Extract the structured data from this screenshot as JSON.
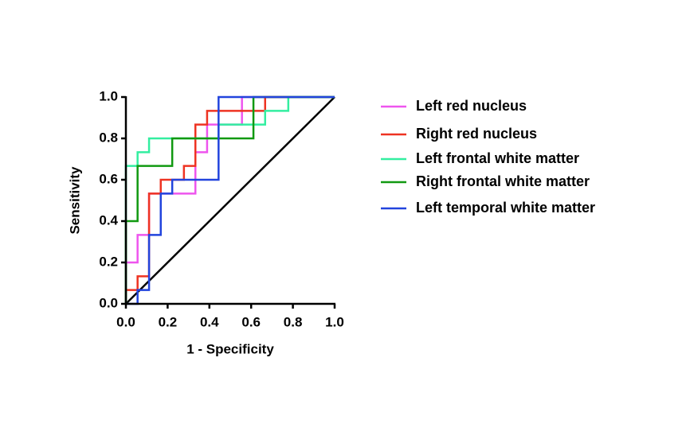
{
  "chart_data": {
    "type": "line",
    "xlabel": "1 - Specificity",
    "ylabel": "Sensitivity",
    "xlim": [
      0,
      1
    ],
    "ylim": [
      0,
      1
    ],
    "xticks": [
      {
        "value": 0,
        "label": "0.0"
      },
      {
        "value": 0.2,
        "label": "0.2"
      },
      {
        "value": 0.4,
        "label": "0.4"
      },
      {
        "value": 0.6,
        "label": "0.6"
      },
      {
        "value": 0.8,
        "label": "0.8"
      },
      {
        "value": 1,
        "label": "1.0"
      }
    ],
    "yticks": [
      {
        "value": 0,
        "label": "0.0"
      },
      {
        "value": 0.2,
        "label": "0.2"
      },
      {
        "value": 0.4,
        "label": "0.4"
      },
      {
        "value": 0.6,
        "label": "0.6"
      },
      {
        "value": 0.8,
        "label": "0.8"
      },
      {
        "value": 1,
        "label": "1.0"
      }
    ],
    "series": [
      {
        "name": "Left red nucleus",
        "color": "#ee55ee",
        "x": [
          0,
          0,
          0.056,
          0.056,
          0.111,
          0.111,
          0.333,
          0.333,
          0.389,
          0.389,
          0.556,
          0.556,
          1
        ],
        "values": [
          0,
          0.2,
          0.2,
          0.333,
          0.333,
          0.533,
          0.533,
          0.733,
          0.733,
          0.867,
          0.867,
          1,
          1
        ]
      },
      {
        "name": "Right red nucleus",
        "color": "#ee3322",
        "x": [
          0,
          0,
          0.056,
          0.056,
          0.111,
          0.111,
          0.167,
          0.167,
          0.278,
          0.278,
          0.333,
          0.333,
          0.389,
          0.389,
          0.667,
          0.667,
          1
        ],
        "values": [
          0,
          0.067,
          0.067,
          0.133,
          0.133,
          0.533,
          0.533,
          0.6,
          0.6,
          0.667,
          0.667,
          0.867,
          0.867,
          0.933,
          0.933,
          1,
          1
        ]
      },
      {
        "name": "Left frontal white matter",
        "color": "#33eea0",
        "x": [
          0,
          0,
          0.056,
          0.056,
          0.111,
          0.111,
          0.444,
          0.444,
          0.667,
          0.667,
          0.778,
          0.778,
          1
        ],
        "values": [
          0,
          0.667,
          0.667,
          0.733,
          0.733,
          0.8,
          0.8,
          0.867,
          0.867,
          0.933,
          0.933,
          1,
          1
        ]
      },
      {
        "name": "Right frontal white matter",
        "color": "#119911",
        "x": [
          0,
          0,
          0.056,
          0.056,
          0.222,
          0.222,
          0.611,
          0.611,
          1
        ],
        "values": [
          0,
          0.4,
          0.4,
          0.667,
          0.667,
          0.8,
          0.8,
          1,
          1
        ]
      },
      {
        "name": "Left temporal white matter",
        "color": "#2244dd",
        "x": [
          0,
          0.056,
          0.056,
          0.111,
          0.111,
          0.167,
          0.167,
          0.222,
          0.222,
          0.444,
          0.444,
          1
        ],
        "values": [
          0,
          0,
          0.067,
          0.067,
          0.333,
          0.333,
          0.533,
          0.533,
          0.6,
          0.6,
          1,
          1
        ]
      }
    ]
  }
}
